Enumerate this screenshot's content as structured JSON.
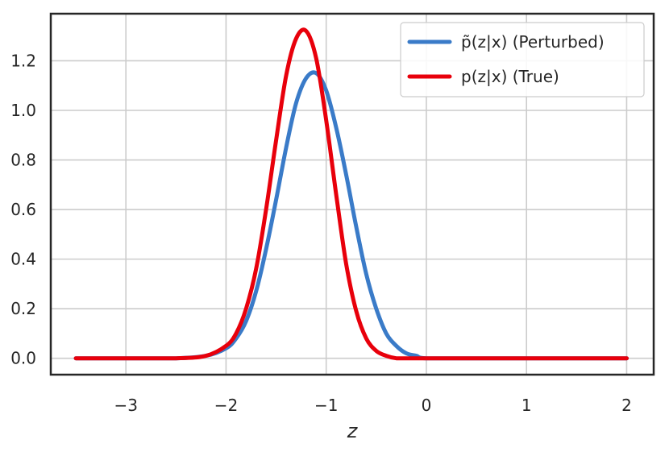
{
  "chart_data": {
    "type": "line",
    "title": "",
    "xlabel": "z",
    "ylabel": "",
    "xlim": [
      -3.75,
      2.27
    ],
    "ylim": [
      -0.066,
      1.39
    ],
    "xticks": [
      -3,
      -2,
      -1,
      0,
      1,
      2
    ],
    "yticks": [
      0.0,
      0.2,
      0.4,
      0.6,
      0.8,
      1.0,
      1.2
    ],
    "x_tick_labels": [
      "−3",
      "−2",
      "−1",
      "0",
      "1",
      "2"
    ],
    "y_tick_labels": [
      "0.0",
      "0.2",
      "0.4",
      "0.6",
      "0.8",
      "1.0",
      "1.2"
    ],
    "grid": true,
    "legend_position": "top-right",
    "series": [
      {
        "name": "p̃(z|x) (Perturbed)",
        "color": "#3a7bc8",
        "x": [
          -3.5,
          -3.0,
          -2.5,
          -2.2,
          -2.0,
          -1.9,
          -1.8,
          -1.7,
          -1.6,
          -1.5,
          -1.4,
          -1.3,
          -1.2,
          -1.1,
          -1.0,
          -0.9,
          -0.8,
          -0.7,
          -0.6,
          -0.5,
          -0.4,
          -0.3,
          -0.2,
          -0.1,
          0.0,
          0.5,
          1.0,
          1.5,
          2.0
        ],
        "y": [
          0.0,
          0.0,
          0.0,
          0.01,
          0.04,
          0.08,
          0.15,
          0.27,
          0.44,
          0.64,
          0.85,
          1.03,
          1.13,
          1.15,
          1.08,
          0.93,
          0.74,
          0.53,
          0.34,
          0.2,
          0.1,
          0.05,
          0.02,
          0.01,
          0.0,
          0.0,
          0.0,
          0.0,
          0.0
        ]
      },
      {
        "name": "p(z|x) (True)",
        "color": "#e8000b",
        "x": [
          -3.5,
          -3.0,
          -2.5,
          -2.2,
          -2.0,
          -1.9,
          -1.8,
          -1.7,
          -1.6,
          -1.5,
          -1.4,
          -1.3,
          -1.2,
          -1.1,
          -1.0,
          -0.9,
          -0.8,
          -0.7,
          -0.6,
          -0.5,
          -0.4,
          -0.3,
          -0.2,
          -0.1,
          0.0,
          0.5,
          1.0,
          1.5,
          2.0
        ],
        "y": [
          0.0,
          0.0,
          0.0,
          0.01,
          0.05,
          0.1,
          0.2,
          0.36,
          0.6,
          0.88,
          1.14,
          1.29,
          1.32,
          1.21,
          0.96,
          0.66,
          0.38,
          0.19,
          0.08,
          0.03,
          0.01,
          0.0,
          0.0,
          0.0,
          0.0,
          0.0,
          0.0,
          0.0,
          0.0
        ]
      }
    ]
  }
}
